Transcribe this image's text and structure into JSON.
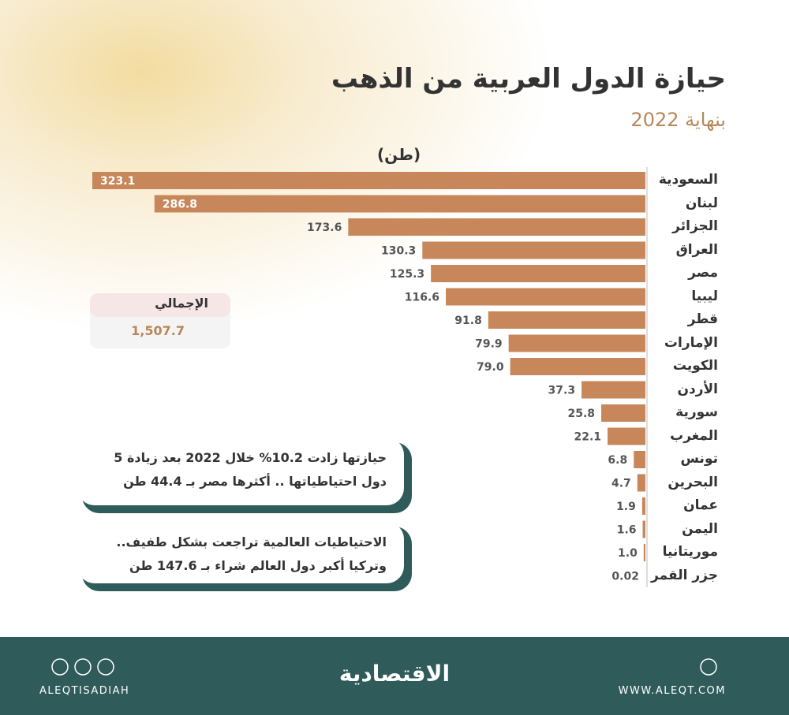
{
  "chart_data": {
    "type": "bar",
    "orientation": "horizontal",
    "title": "حيازة الدول العربية من الذهب",
    "subtitle": "بنهاية 2022",
    "unit_label": "(طن)",
    "categories": [
      "السعودية",
      "لبنان",
      "الجزائر",
      "العراق",
      "مصر",
      "ليبيا",
      "قطر",
      "الإمارات",
      "الكويت",
      "الأردن",
      "سورية",
      "المغرب",
      "تونس",
      "البحرين",
      "عمان",
      "اليمن",
      "موريتانيا",
      "جزر القمر"
    ],
    "values": [
      323.1,
      286.8,
      173.6,
      130.3,
      125.3,
      116.6,
      91.8,
      79.9,
      79.0,
      37.3,
      25.8,
      22.1,
      6.8,
      4.7,
      1.9,
      1.6,
      1.0,
      0.02
    ],
    "value_labels": [
      "323.1",
      "286.8",
      "173.6",
      "130.3",
      "125.3",
      "116.6",
      "91.8",
      "79.9",
      "79.0",
      "37.3",
      "25.8",
      "22.1",
      "6.8",
      "4.7",
      "1.9",
      "1.6",
      "1.0",
      "0.02"
    ],
    "color": "#c7875a",
    "xlim": [
      0,
      323.1
    ],
    "total": {
      "title": "الإجمالي",
      "value": "1,507.7"
    },
    "notes": [
      "حيازتها زادت 10.2% خلال 2022 بعد زيادة 5 دول احتياطياتها .. أكثرها مصر بـ 44.4 طن",
      "الاحتياطيات العالمية تراجعت بشكل طفيف.. وتركيا أكبر دول العالم شراء بـ 147.6 طن"
    ]
  },
  "footer": {
    "handle": "ALEQTISADIAH",
    "brand": "الاقتصادية",
    "website": "WWW.ALEQT.COM"
  }
}
